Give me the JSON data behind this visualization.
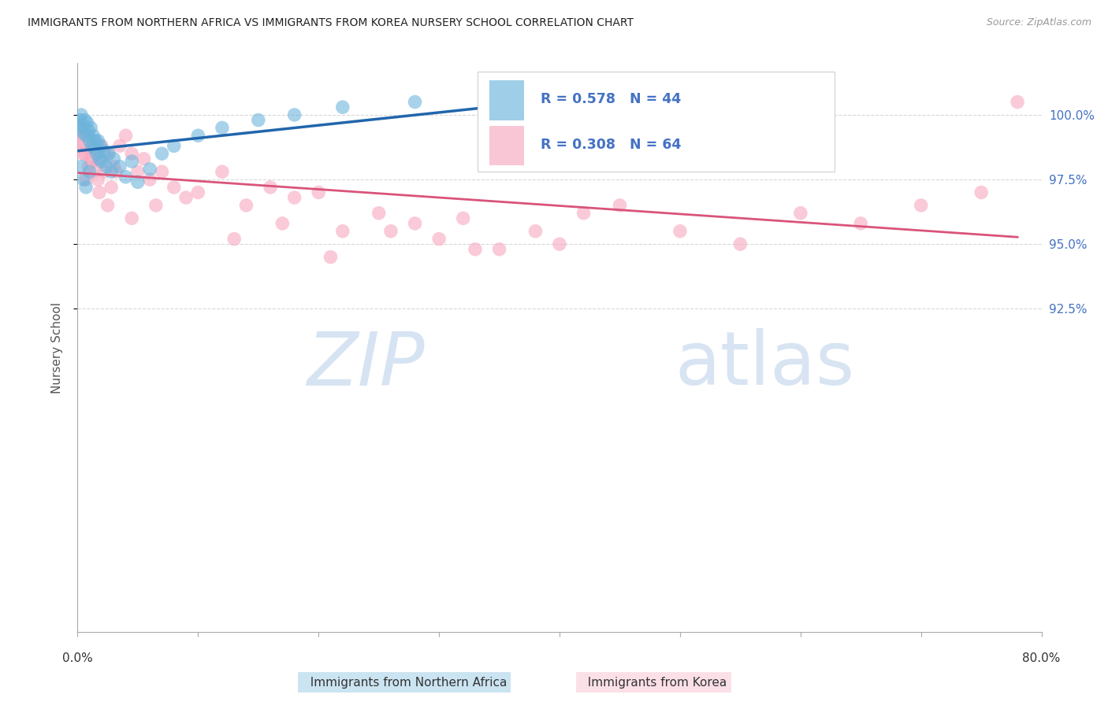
{
  "title": "IMMIGRANTS FROM NORTHERN AFRICA VS IMMIGRANTS FROM KOREA NURSERY SCHOOL CORRELATION CHART",
  "source": "Source: ZipAtlas.com",
  "ylabel": "Nursery School",
  "ytick_values": [
    100.0,
    97.5,
    95.0,
    92.5
  ],
  "xlim": [
    0.0,
    80.0
  ],
  "ylim": [
    80.0,
    102.0
  ],
  "legend_blue_r": "0.578",
  "legend_blue_n": "44",
  "legend_pink_r": "0.308",
  "legend_pink_n": "64",
  "blue_color": "#6cb4dc",
  "pink_color": "#f7a8bf",
  "trendline_blue": "#2166ac",
  "trendline_pink": "#d9547a",
  "text_color_blue": "#4472c4",
  "grid_color": "#d8d8d8",
  "blue_x": [
    0.1,
    0.2,
    0.3,
    0.4,
    0.5,
    0.6,
    0.7,
    0.8,
    0.9,
    1.0,
    1.1,
    1.2,
    1.3,
    1.4,
    1.5,
    1.6,
    1.7,
    1.8,
    1.9,
    2.0,
    2.2,
    2.4,
    2.6,
    2.8,
    3.0,
    3.5,
    4.0,
    4.5,
    5.0,
    6.0,
    7.0,
    8.0,
    10.0,
    12.0,
    15.0,
    18.0,
    22.0,
    28.0,
    35.0,
    45.0,
    0.3,
    0.5,
    0.7,
    1.0
  ],
  "blue_y": [
    99.5,
    99.8,
    100.0,
    99.6,
    99.3,
    99.8,
    99.2,
    99.7,
    99.4,
    99.0,
    99.5,
    98.8,
    99.2,
    98.7,
    99.0,
    98.5,
    99.0,
    98.3,
    98.8,
    98.2,
    98.6,
    98.0,
    98.5,
    97.8,
    98.3,
    98.0,
    97.6,
    98.2,
    97.4,
    97.9,
    98.5,
    98.8,
    99.2,
    99.5,
    99.8,
    100.0,
    100.3,
    100.5,
    100.2,
    100.6,
    98.0,
    97.5,
    97.2,
    97.8
  ],
  "pink_x": [
    0.1,
    0.2,
    0.3,
    0.5,
    0.6,
    0.8,
    0.9,
    1.0,
    1.1,
    1.3,
    1.4,
    1.6,
    1.7,
    1.9,
    2.0,
    2.2,
    2.5,
    2.8,
    3.0,
    3.5,
    4.0,
    4.5,
    5.0,
    5.5,
    6.0,
    7.0,
    8.0,
    10.0,
    12.0,
    14.0,
    16.0,
    18.0,
    20.0,
    22.0,
    25.0,
    28.0,
    30.0,
    32.0,
    35.0,
    38.0,
    40.0,
    45.0,
    50.0,
    55.0,
    60.0,
    65.0,
    70.0,
    75.0,
    78.0,
    0.4,
    0.7,
    1.2,
    1.8,
    2.5,
    3.2,
    4.5,
    6.5,
    9.0,
    13.0,
    17.0,
    21.0,
    26.0,
    33.0,
    42.0
  ],
  "pink_y": [
    99.0,
    99.3,
    98.8,
    99.5,
    98.5,
    99.2,
    98.0,
    98.7,
    98.3,
    99.0,
    97.8,
    98.5,
    97.5,
    98.2,
    98.8,
    97.8,
    98.5,
    97.2,
    98.0,
    98.8,
    99.2,
    98.5,
    97.8,
    98.3,
    97.5,
    97.8,
    97.2,
    97.0,
    97.8,
    96.5,
    97.2,
    96.8,
    97.0,
    95.5,
    96.2,
    95.8,
    95.2,
    96.0,
    94.8,
    95.5,
    95.0,
    96.5,
    95.5,
    95.0,
    96.2,
    95.8,
    96.5,
    97.0,
    100.5,
    98.5,
    97.5,
    98.2,
    97.0,
    96.5,
    97.8,
    96.0,
    96.5,
    96.8,
    95.2,
    95.8,
    94.5,
    95.5,
    94.8,
    96.2
  ],
  "xtick_positions": [
    0,
    10,
    20,
    30,
    40,
    50,
    60,
    70,
    80
  ]
}
